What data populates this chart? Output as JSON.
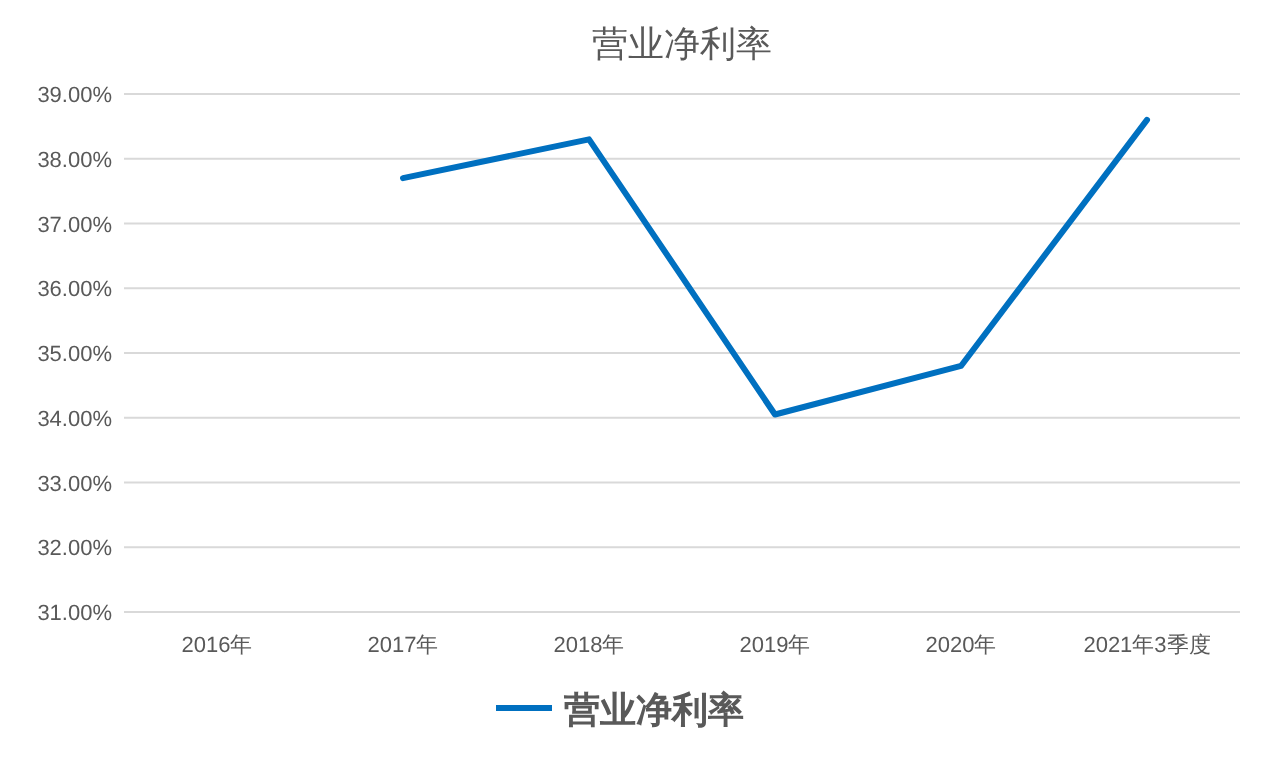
{
  "chart_data": {
    "type": "line",
    "title": "营业净利率",
    "categories": [
      "2016年",
      "2017年",
      "2018年",
      "2019年",
      "2020年",
      "2021年3季度"
    ],
    "series": [
      {
        "name": "营业净利率",
        "color": "#0070c0",
        "values": [
          null,
          37.7,
          38.3,
          34.05,
          34.8,
          38.6
        ]
      }
    ],
    "ylim": [
      31,
      39
    ],
    "yticks": [
      {
        "value": 31,
        "label": "31.00%"
      },
      {
        "value": 32,
        "label": "32.00%"
      },
      {
        "value": 33,
        "label": "33.00%"
      },
      {
        "value": 34,
        "label": "34.00%"
      },
      {
        "value": 35,
        "label": "35.00%"
      },
      {
        "value": 36,
        "label": "36.00%"
      },
      {
        "value": 37,
        "label": "37.00%"
      },
      {
        "value": 38,
        "label": "38.00%"
      },
      {
        "value": 39,
        "label": "39.00%"
      }
    ],
    "grid": "y",
    "legend": "bottom",
    "marker": "none",
    "line_style": "solid"
  }
}
